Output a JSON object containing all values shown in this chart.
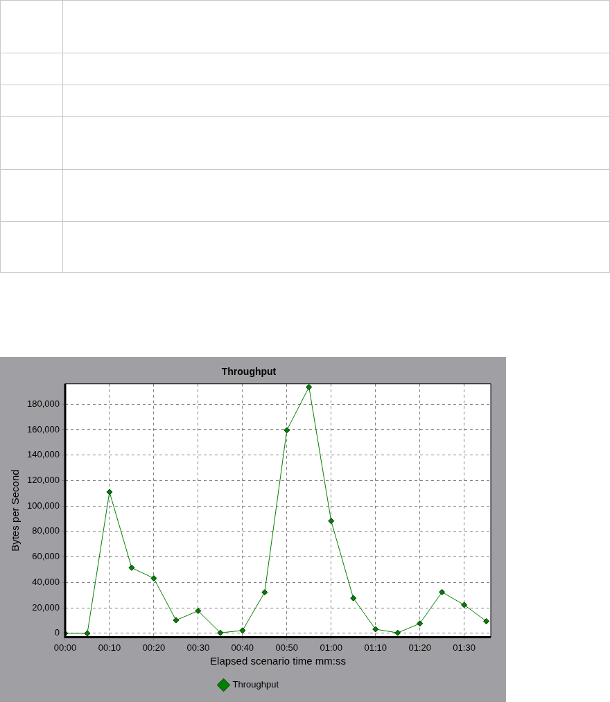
{
  "chart_data": {
    "type": "line",
    "title": "Throughput",
    "xlabel": "Elapsed scenario time mm:ss",
    "ylabel": "Bytes per Second",
    "x": [
      0,
      5,
      10,
      15,
      20,
      25,
      30,
      35,
      40,
      45,
      50,
      55,
      60,
      65,
      70,
      75,
      80,
      85,
      90,
      95
    ],
    "series": [
      {
        "name": "Throughput",
        "color": "#008000",
        "values": [
          0,
          0,
          111000,
          51500,
          43200,
          10300,
          17600,
          400,
          2200,
          32200,
          159500,
          193400,
          88200,
          27600,
          3200,
          400,
          7700,
          32400,
          22300,
          9500
        ]
      }
    ],
    "xlim": [
      0,
      96
    ],
    "xticks": [
      {
        "value": 0,
        "label": "00:00"
      },
      {
        "value": 10,
        "label": "00:10"
      },
      {
        "value": 20,
        "label": "00:20"
      },
      {
        "value": 30,
        "label": "00:30"
      },
      {
        "value": 40,
        "label": "00:40"
      },
      {
        "value": 50,
        "label": "00:50"
      },
      {
        "value": 60,
        "label": "01:00"
      },
      {
        "value": 70,
        "label": "01:10"
      },
      {
        "value": 80,
        "label": "01:20"
      },
      {
        "value": 90,
        "label": "01:30"
      }
    ],
    "ylim": [
      -3000,
      196000
    ],
    "yticks": [
      0,
      {
        "value": 20000,
        "label": "20,000"
      },
      {
        "value": 40000,
        "label": "40,000"
      },
      {
        "value": 60000,
        "label": "60,000"
      },
      {
        "value": 80000,
        "label": "80,000"
      },
      {
        "value": 100000,
        "label": "100,000"
      },
      {
        "value": 120000,
        "label": "120,000"
      },
      {
        "value": 140000,
        "label": "140,000"
      },
      {
        "value": 160000,
        "label": "160,000"
      },
      {
        "value": 180000,
        "label": "180,000"
      }
    ],
    "grid": true,
    "legend": "bottom",
    "marker": "diamond",
    "line_style": "solid"
  }
}
